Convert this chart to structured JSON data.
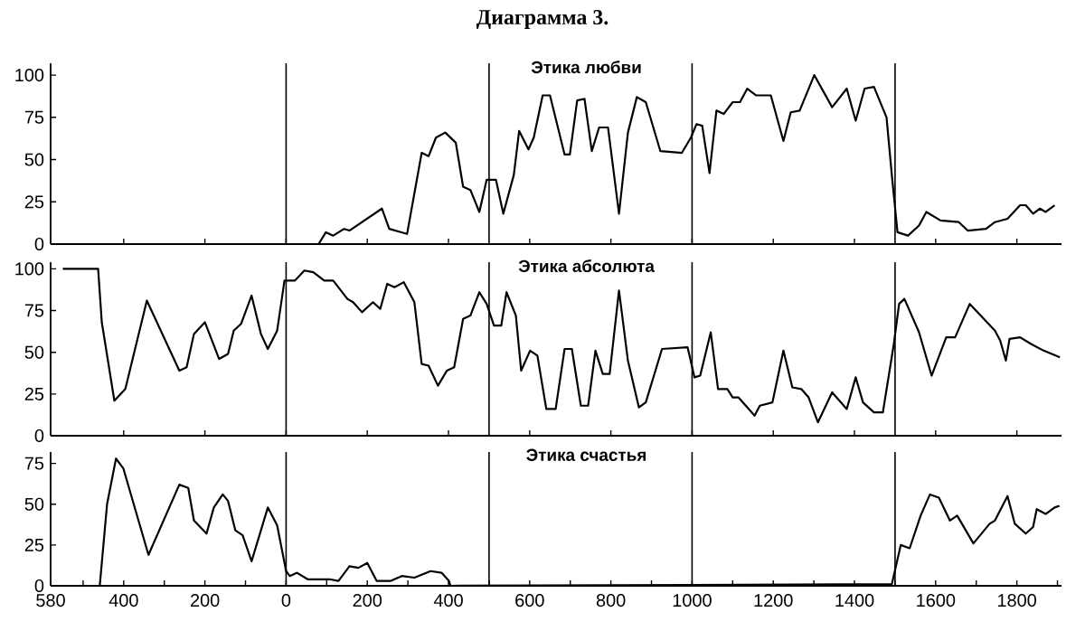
{
  "chart_data": [
    {
      "type": "line",
      "title": "Этика любви",
      "annotations": [
        "Диаграмма 3."
      ],
      "color": "#000000",
      "xlim": [
        -580,
        1910
      ],
      "ylim": [
        0,
        107
      ],
      "yticks": [
        0,
        25,
        50,
        75,
        100
      ],
      "tick_labels": "y",
      "ref_lines": [
        {
          "axis": "x",
          "value": 0
        },
        {
          "axis": "x",
          "value": 500
        },
        {
          "axis": "x",
          "value": 1000
        },
        {
          "axis": "x",
          "value": 1500
        }
      ],
      "x": [
        80,
        98,
        116,
        143,
        156,
        236,
        254,
        298,
        334,
        351,
        369,
        392,
        418,
        436,
        454,
        476,
        494,
        517,
        535,
        561,
        574,
        597,
        610,
        632,
        650,
        686,
        699,
        717,
        735,
        753,
        771,
        793,
        820,
        842,
        864,
        886,
        922,
        975,
        997,
        1011,
        1025,
        1043,
        1060,
        1078,
        1100,
        1118,
        1136,
        1158,
        1194,
        1225,
        1243,
        1265,
        1301,
        1345,
        1381,
        1403,
        1425,
        1448,
        1479,
        1492,
        1506,
        1532,
        1559,
        1577,
        1612,
        1657,
        1679,
        1724,
        1746,
        1777,
        1808,
        1822,
        1840,
        1857,
        1871,
        1893
      ],
      "values": [
        0,
        7,
        5,
        9,
        8,
        21,
        9,
        6,
        54,
        52,
        63,
        66,
        60,
        34,
        32,
        19,
        38,
        38,
        18,
        41,
        67,
        56,
        63,
        88,
        88,
        53,
        53,
        85,
        86,
        55,
        69,
        69,
        18,
        66,
        87,
        84,
        55,
        54,
        63,
        71,
        70,
        42,
        79,
        77,
        84,
        84,
        92,
        88,
        88,
        61,
        78,
        79,
        100,
        81,
        92,
        73,
        92,
        93,
        75,
        41,
        7,
        5,
        11,
        19,
        14,
        13,
        8,
        9,
        13,
        15,
        23,
        23,
        18,
        21,
        19,
        23
      ]
    },
    {
      "type": "line",
      "title": "Этика абсолюта",
      "color": "#000000",
      "xlim": [
        -580,
        1910
      ],
      "ylim": [
        0,
        104
      ],
      "yticks": [
        0,
        25,
        50,
        75,
        100
      ],
      "tick_labels": "y",
      "ref_lines": [
        {
          "axis": "x",
          "value": 0
        },
        {
          "axis": "x",
          "value": 500
        },
        {
          "axis": "x",
          "value": 1000
        },
        {
          "axis": "x",
          "value": 1500
        }
      ],
      "x": [
        -550,
        -463,
        -454,
        -423,
        -396,
        -343,
        -263,
        -245,
        -227,
        -200,
        -165,
        -143,
        -129,
        -111,
        -85,
        -62,
        -45,
        -22,
        -4,
        22,
        45,
        67,
        94,
        116,
        151,
        165,
        187,
        214,
        232,
        249,
        267,
        290,
        316,
        334,
        351,
        374,
        396,
        414,
        436,
        454,
        476,
        494,
        512,
        530,
        543,
        566,
        579,
        601,
        619,
        641,
        664,
        686,
        704,
        726,
        744,
        762,
        780,
        797,
        820,
        842,
        869,
        886,
        926,
        989,
        1006,
        1020,
        1046,
        1064,
        1087,
        1100,
        1114,
        1154,
        1167,
        1198,
        1225,
        1247,
        1269,
        1287,
        1310,
        1345,
        1381,
        1403,
        1421,
        1448,
        1470,
        1497,
        1510,
        1523,
        1559,
        1590,
        1626,
        1648,
        1684,
        1746,
        1759,
        1773,
        1782,
        1808,
        1835,
        1866,
        1906
      ],
      "values": [
        100,
        100,
        68,
        21,
        28,
        81,
        39,
        41,
        61,
        68,
        46,
        49,
        63,
        67,
        84,
        61,
        52,
        63,
        93,
        93,
        99,
        98,
        93,
        93,
        82,
        80,
        74,
        80,
        76,
        91,
        89,
        92,
        80,
        43,
        42,
        30,
        39,
        41,
        70,
        72,
        86,
        79,
        66,
        66,
        86,
        72,
        39,
        51,
        48,
        16,
        16,
        52,
        52,
        18,
        18,
        51,
        37,
        37,
        87,
        45,
        17,
        20,
        52,
        53,
        35,
        36,
        62,
        28,
        28,
        23,
        23,
        12,
        18,
        20,
        51,
        29,
        28,
        23,
        8,
        26,
        16,
        35,
        20,
        14,
        14,
        55,
        79,
        82,
        62,
        36,
        59,
        59,
        79,
        63,
        57,
        45,
        58,
        59,
        55,
        51,
        47
      ]
    },
    {
      "type": "line",
      "title": "Этика счастья",
      "color": "#000000",
      "xlim": [
        -580,
        1910
      ],
      "ylim": [
        0,
        82
      ],
      "yticks": [
        0,
        25,
        50,
        75
      ],
      "xticks": [
        {
          "value": -580,
          "label": "580"
        },
        {
          "value": -500,
          "label": null
        },
        {
          "value": -400,
          "label": "400"
        },
        {
          "value": -300,
          "label": null
        },
        {
          "value": -200,
          "label": "200"
        },
        {
          "value": -100,
          "label": null
        },
        0,
        {
          "value": 100,
          "label": null
        },
        200,
        {
          "value": 300,
          "label": null
        },
        400,
        {
          "value": 500,
          "label": null
        },
        600,
        {
          "value": 700,
          "label": null
        },
        800,
        {
          "value": 900,
          "label": null
        },
        1000,
        {
          "value": 1100,
          "label": null
        },
        1200,
        {
          "value": 1300,
          "label": null
        },
        1400,
        {
          "value": 1500,
          "label": null
        },
        1600,
        {
          "value": 1700,
          "label": null
        },
        1800,
        {
          "value": 1900,
          "label": null
        }
      ],
      "ref_lines": [
        {
          "axis": "x",
          "value": 0
        },
        {
          "axis": "x",
          "value": 500
        },
        {
          "axis": "x",
          "value": 1000
        },
        {
          "axis": "x",
          "value": 1500
        }
      ],
      "x": [
        -459,
        -441,
        -419,
        -401,
        -339,
        -263,
        -241,
        -227,
        -196,
        -178,
        -156,
        -143,
        -125,
        -107,
        -85,
        -45,
        -22,
        0,
        9,
        27,
        53,
        107,
        129,
        156,
        178,
        200,
        223,
        258,
        285,
        316,
        356,
        383,
        401,
        405,
        1492,
        1514,
        1536,
        1563,
        1586,
        1608,
        1635,
        1653,
        1693,
        1733,
        1746,
        1777,
        1795,
        1822,
        1840,
        1849,
        1871,
        1893,
        1905
      ],
      "values": [
        0,
        50,
        78,
        72,
        19,
        62,
        60,
        40,
        32,
        48,
        56,
        52,
        34,
        31,
        15,
        48,
        37,
        9,
        6,
        8,
        4,
        4,
        3,
        12,
        11,
        14,
        3,
        3,
        6,
        5,
        9,
        8,
        3,
        0,
        1,
        25,
        23,
        43,
        56,
        54,
        40,
        43,
        26,
        38,
        40,
        55,
        38,
        32,
        36,
        47,
        44,
        48,
        49
      ]
    }
  ]
}
